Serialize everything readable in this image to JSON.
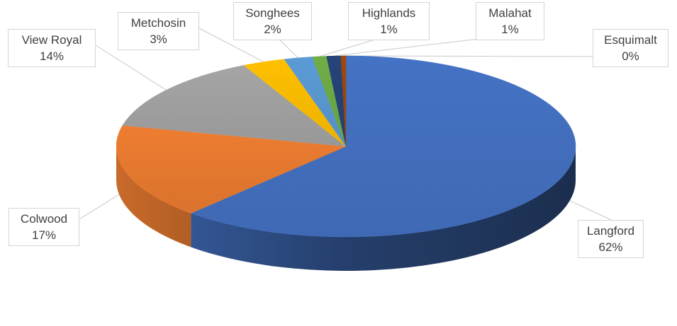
{
  "chart_data": {
    "type": "pie",
    "style": "3d",
    "title": "",
    "labels": [
      "Langford",
      "Colwood",
      "View Royal",
      "Metchosin",
      "Songhees",
      "Highlands",
      "Malahat",
      "Esquimalt"
    ],
    "values": [
      62,
      17,
      14,
      3,
      2,
      1,
      1,
      0
    ],
    "value_labels": [
      "62%",
      "17%",
      "14%",
      "3%",
      "2%",
      "1%",
      "1%",
      "0%"
    ],
    "colors": [
      "#4472C4",
      "#ED7D31",
      "#A5A5A5",
      "#FFC000",
      "#5B9BD5",
      "#70AD47",
      "#264478",
      "#9E480E"
    ],
    "legend": "none"
  }
}
